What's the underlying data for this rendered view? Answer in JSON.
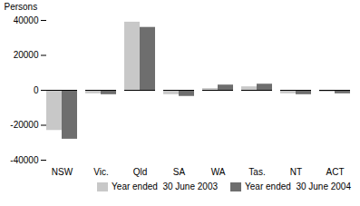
{
  "chart_data": {
    "type": "bar",
    "categories": [
      "NSW",
      "Vic.",
      "Qld",
      "SA",
      "WA",
      "Tas.",
      "NT",
      "ACT"
    ],
    "series": [
      {
        "name": "Year ended  30 June 2003",
        "color": "#c8c8c8",
        "values": [
          -23000,
          -2000,
          39000,
          -2500,
          1000,
          2000,
          -2000,
          -1000
        ]
      },
      {
        "name": "Year ended  30 June 2004",
        "color": "#6e6e6e",
        "values": [
          -28000,
          -2500,
          36000,
          -3500,
          3000,
          3500,
          -2500,
          -2000
        ]
      }
    ],
    "ylabel": "Persons",
    "ylim": [
      -40000,
      40000
    ],
    "yticks": [
      -40000,
      -20000,
      0,
      20000,
      40000
    ],
    "grid": false
  }
}
